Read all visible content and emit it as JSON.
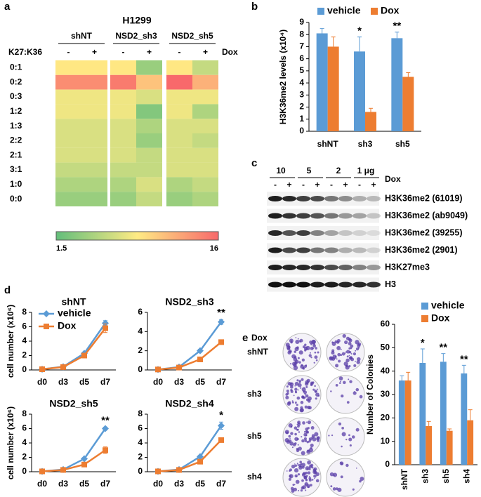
{
  "panel_labels": [
    "a",
    "b",
    "c",
    "d",
    "e"
  ],
  "chart_data": [
    {
      "type": "heatmap",
      "title": "H1299",
      "groups": [
        "shNT",
        "NSD2_sh3",
        "NSD2_sh5"
      ],
      "row_header": "K27:K36",
      "column_header": "Dox",
      "columns": [
        "-",
        "+",
        "-",
        "+",
        "-",
        "+"
      ],
      "rows": [
        "0:1",
        "0:2",
        "0:3",
        "1:2",
        "1:3",
        "2:2",
        "2:1",
        "3:1",
        "1:0",
        "0:0"
      ],
      "values": [
        [
          9,
          9,
          9,
          4,
          9,
          6
        ],
        [
          14,
          14,
          15,
          11,
          16,
          12
        ],
        [
          8,
          8,
          8,
          7,
          8,
          8
        ],
        [
          8,
          8,
          8,
          3,
          8,
          5
        ],
        [
          7,
          7,
          7,
          5,
          7,
          7
        ],
        [
          7,
          7,
          7,
          4,
          7,
          6
        ],
        [
          7,
          7,
          7,
          6,
          7,
          7
        ],
        [
          6,
          6,
          6,
          6,
          7,
          7
        ],
        [
          5,
          5,
          5,
          7,
          5,
          6
        ],
        [
          4,
          4,
          4,
          6,
          4,
          5
        ]
      ],
      "zlim": [
        1.5,
        16
      ],
      "zticks": [
        1.5,
        16
      ],
      "colormap": [
        "#63be7b",
        "#ffeb84",
        "#f8696b"
      ]
    },
    {
      "type": "bar",
      "ylabel": "H3K36me2 levels (x10⁴)",
      "categories": [
        "shNT",
        "sh3",
        "sh5"
      ],
      "series": [
        {
          "name": "vehicle",
          "color": "#5b9bd5",
          "values": [
            8.1,
            6.6,
            7.7
          ],
          "errors": [
            0.4,
            1.2,
            0.5
          ]
        },
        {
          "name": "Dox",
          "color": "#ed7d31",
          "values": [
            7.0,
            1.6,
            4.5
          ],
          "errors": [
            0.8,
            0.3,
            0.35
          ]
        }
      ],
      "annotations": [
        null,
        "*",
        "**"
      ],
      "ylim": [
        0,
        9
      ],
      "yticks": [
        0,
        1,
        2,
        3,
        4,
        5,
        6,
        7,
        8,
        9
      ],
      "legend": "top"
    },
    {
      "type": "line",
      "title": "shNT",
      "ylabel": "cell number (x10⁶)",
      "categories": [
        "d0",
        "d3",
        "d5",
        "d7"
      ],
      "series": [
        {
          "name": "vehicle",
          "color": "#5b9bd5",
          "marker": "diamond",
          "values": [
            0.1,
            0.45,
            2.3,
            6.5
          ],
          "errors": [
            0.05,
            0.05,
            0.15,
            0.35
          ]
        },
        {
          "name": "Dox",
          "color": "#ed7d31",
          "marker": "square",
          "values": [
            0.1,
            0.4,
            2.0,
            5.8
          ],
          "errors": [
            0.05,
            0.05,
            0.15,
            0.6
          ]
        }
      ],
      "ylim": [
        0,
        8
      ],
      "yticks": [
        0,
        2,
        4,
        6,
        8
      ],
      "legend": "upper left"
    },
    {
      "type": "line",
      "title": "NSD2_sh3",
      "categories": [
        "d0",
        "d3",
        "d5",
        "d7"
      ],
      "series": [
        {
          "color": "#5b9bd5",
          "marker": "diamond",
          "values": [
            0.05,
            0.3,
            2.0,
            5.0
          ],
          "errors": [
            0.02,
            0.05,
            0.15,
            0.25
          ]
        },
        {
          "color": "#ed7d31",
          "marker": "square",
          "values": [
            0.05,
            0.25,
            1.1,
            2.9
          ],
          "errors": [
            0.02,
            0.05,
            0.1,
            0.15
          ]
        }
      ],
      "annotations": [
        null,
        null,
        null,
        "**"
      ],
      "ylim": [
        0,
        6
      ],
      "yticks": [
        0,
        2,
        4,
        6
      ]
    },
    {
      "type": "line",
      "title": "NSD2_sh5",
      "ylabel": "cell number (x10⁶)",
      "categories": [
        "d0",
        "d3",
        "d5",
        "d7"
      ],
      "series": [
        {
          "color": "#5b9bd5",
          "marker": "diamond",
          "values": [
            0.05,
            0.3,
            1.8,
            6.0
          ],
          "errors": [
            0.02,
            0.05,
            0.1,
            0.2
          ]
        },
        {
          "color": "#ed7d31",
          "marker": "square",
          "values": [
            0.05,
            0.25,
            1.0,
            3.0
          ],
          "errors": [
            0.02,
            0.05,
            0.1,
            0.45
          ]
        }
      ],
      "annotations": [
        null,
        null,
        null,
        "**"
      ],
      "ylim": [
        0,
        8
      ],
      "yticks": [
        0,
        2,
        4,
        6,
        8
      ]
    },
    {
      "type": "line",
      "title": "NSD2_sh4",
      "categories": [
        "d0",
        "d3",
        "d5",
        "d7"
      ],
      "series": [
        {
          "color": "#5b9bd5",
          "marker": "diamond",
          "values": [
            0.05,
            0.3,
            2.1,
            6.4
          ],
          "errors": [
            0.02,
            0.05,
            0.15,
            0.5
          ]
        },
        {
          "color": "#ed7d31",
          "marker": "square",
          "values": [
            0.05,
            0.25,
            1.4,
            4.4
          ],
          "errors": [
            0.02,
            0.05,
            0.1,
            0.1
          ]
        }
      ],
      "annotations": [
        null,
        null,
        null,
        "*"
      ],
      "ylim": [
        0,
        8
      ],
      "yticks": [
        0,
        2,
        4,
        6,
        8
      ]
    },
    {
      "type": "bar",
      "ylabel": "Number of Colonies",
      "categories": [
        "shNT",
        "sh3",
        "sh5",
        "sh4"
      ],
      "xtick_rotation": -90,
      "series": [
        {
          "name": "vehicle",
          "color": "#5b9bd5",
          "values": [
            36,
            43.5,
            44,
            39
          ],
          "errors": [
            2,
            6,
            3.5,
            3.5
          ]
        },
        {
          "name": "Dox",
          "color": "#ed7d31",
          "values": [
            36,
            16.5,
            14.5,
            19
          ],
          "errors": [
            3.5,
            2,
            0.8,
            4.5
          ]
        }
      ],
      "annotations": [
        null,
        "*",
        "**",
        "**"
      ],
      "ylim": [
        0,
        60
      ],
      "yticks": [
        0,
        10,
        20,
        30,
        40,
        50,
        60
      ],
      "legend": "upper right"
    }
  ],
  "western_blot": {
    "groups": [
      "10",
      "5",
      "2",
      "1 μg"
    ],
    "dox_label": "Dox",
    "lanes": [
      "-",
      "+",
      "-",
      "+",
      "-",
      "+",
      "-",
      "+"
    ],
    "bands": [
      "H3K36me2 (61019)",
      "H3K36me2 (ab9049)",
      "H3K36me2 (39255)",
      "H3K36me2 (2901)",
      "H3K27me3",
      "H3"
    ]
  },
  "colony_assay": {
    "dox_label": "Dox",
    "columns": [
      "-",
      "+"
    ],
    "rows": [
      "shNT",
      "sh3",
      "sh5",
      "sh4"
    ]
  }
}
